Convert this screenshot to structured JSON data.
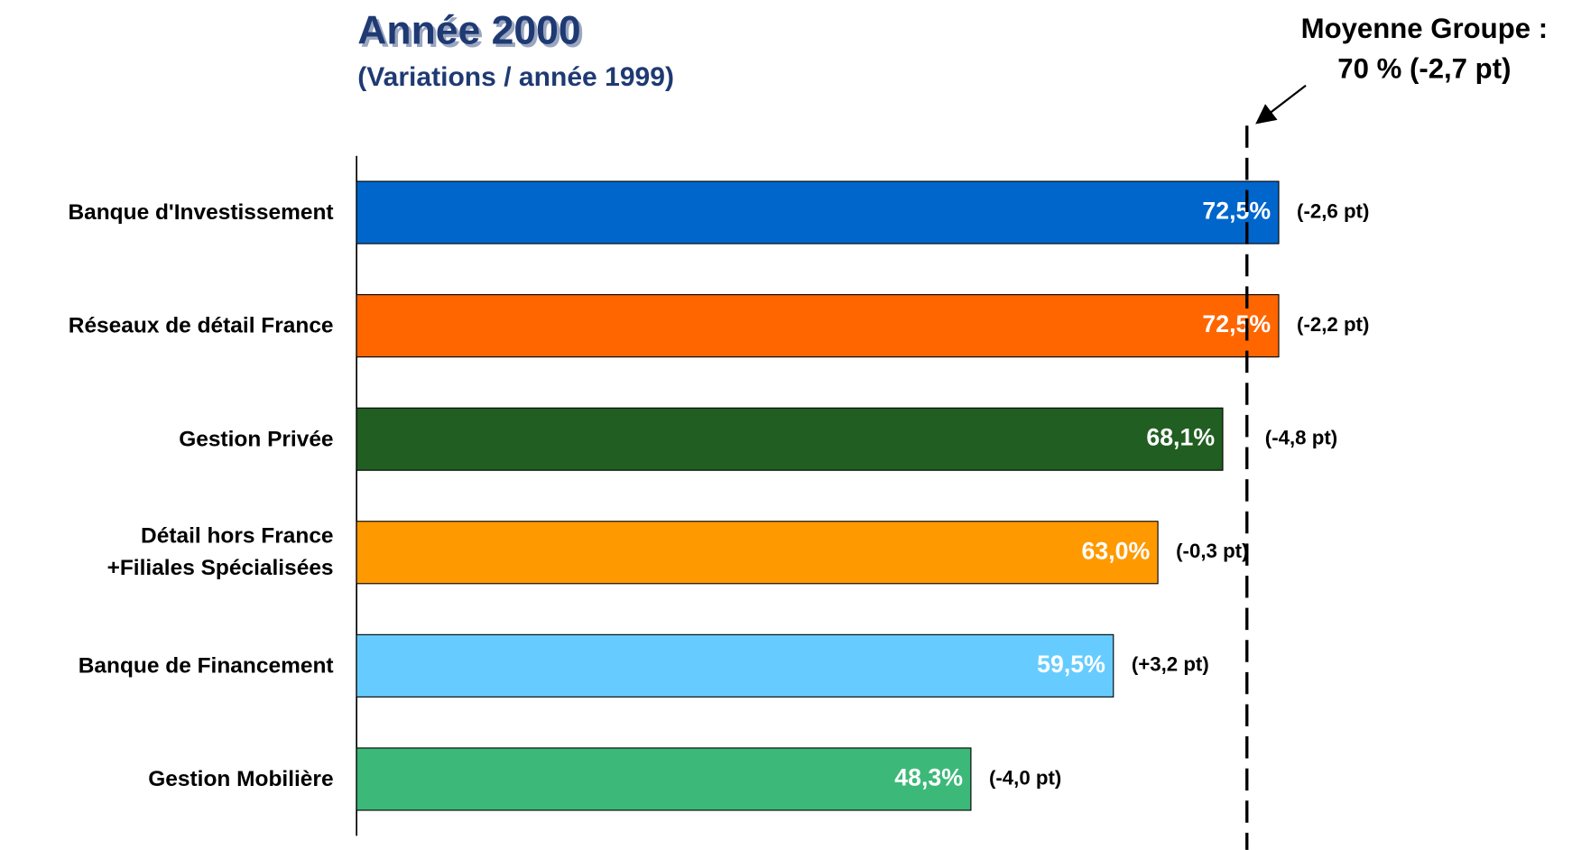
{
  "chart_data": {
    "type": "bar",
    "orientation": "horizontal",
    "title": "Année 2000",
    "subtitle": "(Variations / année 1999)",
    "categories": [
      "Banque d'Investissement",
      "Réseaux de détail France",
      "Gestion Privée",
      "Détail hors France\n+Filiales Spécialisées",
      "Banque de Financement",
      "Gestion Mobilière"
    ],
    "values": [
      72.5,
      72.5,
      68.1,
      63.0,
      59.5,
      48.3
    ],
    "value_labels": [
      "72,5%",
      "72,5%",
      "68,1%",
      "63,0%",
      "59,5%",
      "48,3%"
    ],
    "change_labels": [
      "(-2,6 pt)",
      "(-2,2 pt)",
      "(-4,8 pt)",
      "(-0,3 pt)",
      "(+3,2 pt)",
      "(-4,0 pt)"
    ],
    "colors": [
      "#0066cc",
      "#ff6600",
      "#215e21",
      "#ff9900",
      "#66ccff",
      "#3cb878"
    ],
    "xlim": [
      0,
      80
    ],
    "reference": {
      "value": 70,
      "label": [
        "Moyenne Groupe :",
        "70 % (-2,7 pt)"
      ]
    }
  }
}
